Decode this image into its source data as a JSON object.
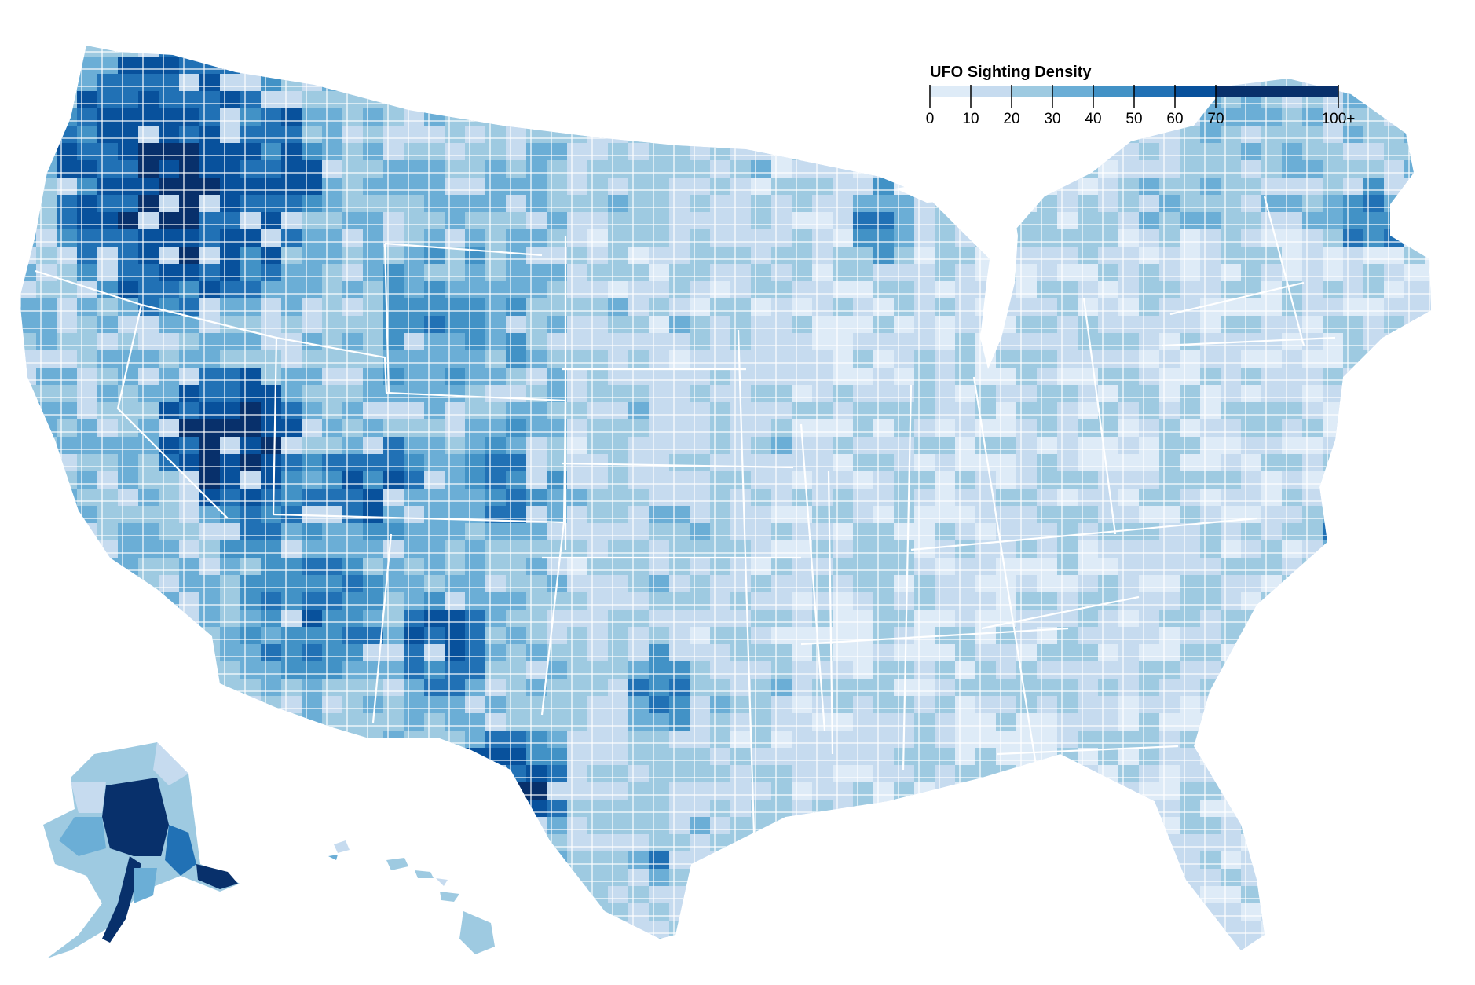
{
  "legend": {
    "title": "UFO Sighting Density",
    "ticks": [
      "0",
      "10",
      "20",
      "30",
      "40",
      "50",
      "60",
      "70",
      "100+"
    ],
    "colors": [
      "#deebf7",
      "#c6dbef",
      "#9ecae1",
      "#6baed6",
      "#4292c6",
      "#2171b5",
      "#08519c",
      "#08306b"
    ]
  },
  "map": {
    "features": "US county choropleth (contiguous states, Alaska, Hawaii)",
    "border_color": "#ffffff",
    "no_data_color": "#ffffff"
  }
}
